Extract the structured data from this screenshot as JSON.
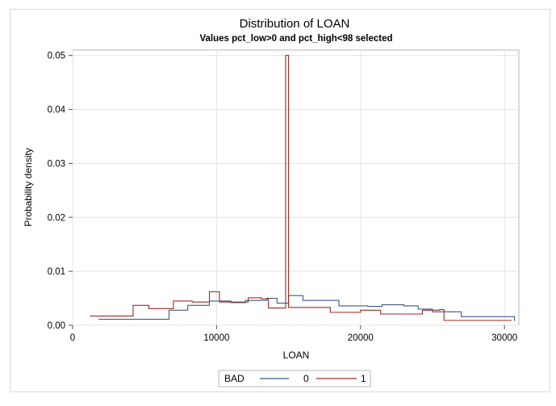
{
  "chart_data": {
    "type": "line",
    "title": "Distribution of LOAN",
    "subtitle": "Values pct_low>0 and pct_high<98 selected",
    "xlabel": "LOAN",
    "ylabel": "Probability density",
    "xlim": [
      0,
      31000
    ],
    "ylim": [
      0,
      0.051
    ],
    "xticks": [
      0,
      10000,
      20000,
      30000
    ],
    "xtick_labels": [
      "0",
      "10000",
      "20000",
      "30000"
    ],
    "yticks": [
      0.0,
      0.01,
      0.02,
      0.03,
      0.04,
      0.05
    ],
    "ytick_labels": [
      "0.00",
      "0.01",
      "0.02",
      "0.03",
      "0.04",
      "0.05"
    ],
    "grid": true,
    "legend": {
      "title": "BAD",
      "placement": "bottom-center"
    },
    "series": [
      {
        "name": "0",
        "color": "#3b5a8c",
        "points": [
          [
            1800,
            0.0011
          ],
          [
            6700,
            0.0011
          ],
          [
            6700,
            0.0028
          ],
          [
            8000,
            0.0028
          ],
          [
            8000,
            0.0037
          ],
          [
            9500,
            0.0037
          ],
          [
            9500,
            0.0045
          ],
          [
            11000,
            0.0045
          ],
          [
            11000,
            0.0042
          ],
          [
            12000,
            0.0042
          ],
          [
            12000,
            0.0046
          ],
          [
            13500,
            0.0046
          ],
          [
            13500,
            0.005
          ],
          [
            14200,
            0.005
          ],
          [
            14200,
            0.0041
          ],
          [
            15000,
            0.0041
          ],
          [
            15000,
            0.0055
          ],
          [
            16000,
            0.0055
          ],
          [
            16000,
            0.0046
          ],
          [
            18500,
            0.0046
          ],
          [
            18500,
            0.0036
          ],
          [
            20500,
            0.0036
          ],
          [
            20500,
            0.0035
          ],
          [
            21500,
            0.0035
          ],
          [
            21500,
            0.0038
          ],
          [
            23000,
            0.0038
          ],
          [
            23000,
            0.0036
          ],
          [
            24000,
            0.0036
          ],
          [
            24000,
            0.003
          ],
          [
            25000,
            0.003
          ],
          [
            25000,
            0.0025
          ],
          [
            27000,
            0.0025
          ],
          [
            27000,
            0.0016
          ],
          [
            30700,
            0.0016
          ],
          [
            30700,
            0.0008
          ]
        ]
      },
      {
        "name": "1",
        "color": "#9c2a21",
        "points": [
          [
            1200,
            0.0017
          ],
          [
            4200,
            0.0017
          ],
          [
            4200,
            0.0037
          ],
          [
            5300,
            0.0037
          ],
          [
            5300,
            0.0031
          ],
          [
            7000,
            0.0031
          ],
          [
            7000,
            0.0045
          ],
          [
            8300,
            0.0045
          ],
          [
            8300,
            0.0043
          ],
          [
            9500,
            0.0043
          ],
          [
            9500,
            0.0062
          ],
          [
            10200,
            0.0062
          ],
          [
            10200,
            0.0043
          ],
          [
            12200,
            0.0043
          ],
          [
            12200,
            0.0051
          ],
          [
            13100,
            0.0051
          ],
          [
            13100,
            0.0049
          ],
          [
            13600,
            0.0049
          ],
          [
            13600,
            0.0032
          ],
          [
            14800,
            0.0032
          ],
          [
            14800,
            0.05
          ],
          [
            15000,
            0.05
          ],
          [
            15000,
            0.0033
          ],
          [
            17900,
            0.0033
          ],
          [
            17900,
            0.0024
          ],
          [
            20000,
            0.0024
          ],
          [
            20000,
            0.0028
          ],
          [
            21400,
            0.0028
          ],
          [
            21400,
            0.0021
          ],
          [
            24300,
            0.0021
          ],
          [
            24300,
            0.0028
          ],
          [
            25500,
            0.0028
          ],
          [
            25500,
            0.0029
          ],
          [
            25800,
            0.0029
          ],
          [
            25800,
            0.0009
          ],
          [
            30500,
            0.0009
          ]
        ]
      }
    ]
  }
}
